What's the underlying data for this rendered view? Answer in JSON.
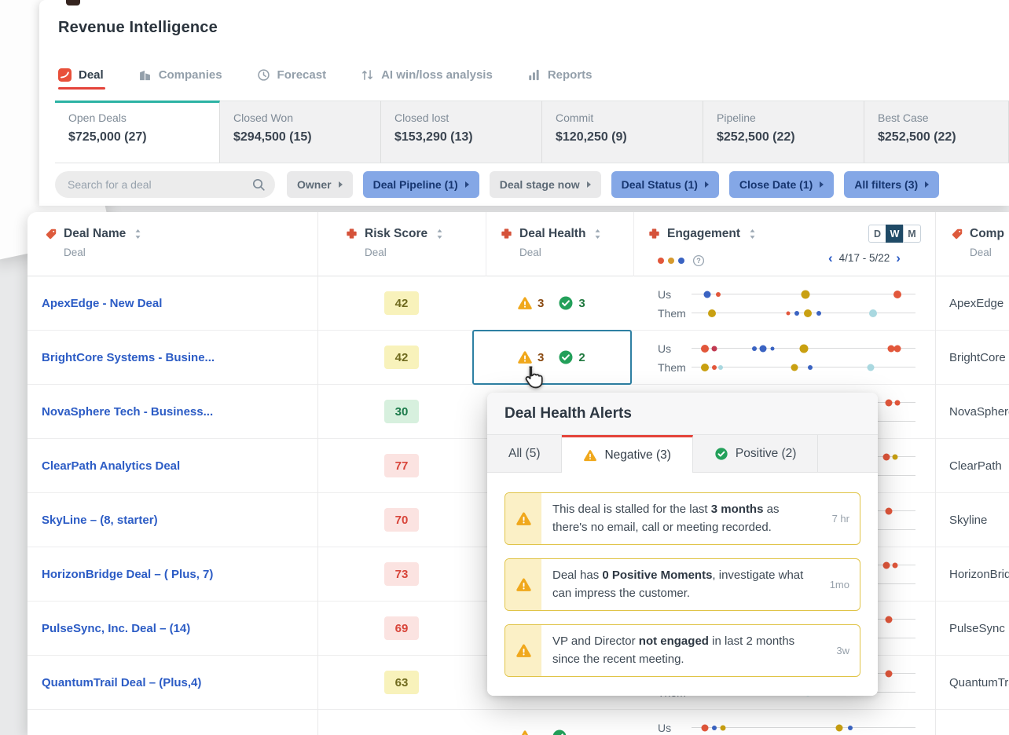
{
  "page": {
    "title": "Revenue Intelligence"
  },
  "nav": {
    "tabs": [
      {
        "label": "Deal",
        "icon": "deal-logo-icon",
        "active": true
      },
      {
        "label": "Companies",
        "icon": "buildings-icon",
        "active": false
      },
      {
        "label": "Forecast",
        "icon": "clock-icon",
        "active": false
      },
      {
        "label": "AI win/loss analysis",
        "icon": "winloss-icon",
        "active": false
      },
      {
        "label": "Reports",
        "icon": "bar-chart-icon",
        "active": false
      }
    ]
  },
  "summary_cards": [
    {
      "label": "Open Deals",
      "value": "$725,000 (27)",
      "active": true
    },
    {
      "label": "Closed Won",
      "value": "$294,500 (15)",
      "active": false
    },
    {
      "label": "Closed lost",
      "value": "$153,290 (13)",
      "active": false
    },
    {
      "label": "Commit",
      "value": "$120,250 (9)",
      "active": false
    },
    {
      "label": "Pipeline",
      "value": "$252,500 (22)",
      "active": false
    },
    {
      "label": "Best Case",
      "value": "$252,500 (22)",
      "active": false
    }
  ],
  "filter_bar": {
    "search": {
      "placeholder": "Search for a deal"
    },
    "chips": [
      {
        "label": "Owner",
        "active": false
      },
      {
        "label": "Deal Pipeline (1)",
        "active": true
      },
      {
        "label": "Deal stage now",
        "active": false
      },
      {
        "label": "Deal Status (1)",
        "active": true
      },
      {
        "label": "Close Date (1)",
        "active": true
      },
      {
        "label": "All filters (3)",
        "active": true
      }
    ]
  },
  "table": {
    "columns": {
      "deal_name": {
        "label": "Deal Name",
        "sublabel": "Deal"
      },
      "risk_score": {
        "label": "Risk Score",
        "sublabel": "Deal"
      },
      "deal_health": {
        "label": "Deal Health",
        "sublabel": "Deal"
      },
      "engagement": {
        "label": "Engagement",
        "series_labels": [
          "Us",
          "Them"
        ],
        "granularity_options": [
          "D",
          "W",
          "M"
        ],
        "granularity_selected": "W",
        "date_range": "4/17 - 5/22",
        "legend_colors": [
          "#e2573b",
          "#d69a2d",
          "#3a63c2"
        ]
      },
      "company": {
        "label": "Comp",
        "sublabel": "Deal"
      }
    },
    "dot_colors": {
      "red": "#e2573b",
      "maroon": "#c13a52",
      "yellow": "#c9a011",
      "blue": "#3a63c2",
      "cyan": "#a9d8e0"
    },
    "rows": [
      {
        "name": "ApexEdge - New Deal",
        "risk": "42",
        "risk_tone": "yellow",
        "health": {
          "negative": "3",
          "positive": "3"
        },
        "health_selected": false,
        "company": "ApexEdge",
        "us": [
          {
            "p": 7,
            "c": "blue",
            "s": 9
          },
          {
            "p": 12,
            "c": "red",
            "s": 6
          },
          {
            "p": 51,
            "c": "yellow",
            "s": 11
          },
          {
            "p": 92,
            "c": "red",
            "s": 10
          }
        ],
        "them": [
          {
            "p": 9,
            "c": "yellow",
            "s": 10
          },
          {
            "p": 43,
            "c": "red",
            "s": 5
          },
          {
            "p": 47,
            "c": "blue",
            "s": 6
          },
          {
            "p": 52,
            "c": "yellow",
            "s": 10
          },
          {
            "p": 57,
            "c": "blue",
            "s": 6
          },
          {
            "p": 81,
            "c": "cyan",
            "s": 10
          }
        ]
      },
      {
        "name": "BrightCore Systems - Busine...",
        "risk": "42",
        "risk_tone": "yellow",
        "health": {
          "negative": "3",
          "positive": "2"
        },
        "health_selected": true,
        "company": "BrightCore",
        "us": [
          {
            "p": 6,
            "c": "red",
            "s": 10
          },
          {
            "p": 10,
            "c": "maroon",
            "s": 7
          },
          {
            "p": 28,
            "c": "blue",
            "s": 6
          },
          {
            "p": 32,
            "c": "blue",
            "s": 9
          },
          {
            "p": 36,
            "c": "blue",
            "s": 5
          },
          {
            "p": 50,
            "c": "yellow",
            "s": 11
          },
          {
            "p": 89,
            "c": "red",
            "s": 9
          },
          {
            "p": 92,
            "c": "red",
            "s": 9
          }
        ],
        "them": [
          {
            "p": 6,
            "c": "yellow",
            "s": 10
          },
          {
            "p": 10,
            "c": "red",
            "s": 6
          },
          {
            "p": 13,
            "c": "cyan",
            "s": 6
          },
          {
            "p": 46,
            "c": "yellow",
            "s": 9
          },
          {
            "p": 53,
            "c": "blue",
            "s": 6
          },
          {
            "p": 80,
            "c": "cyan",
            "s": 9
          }
        ]
      },
      {
        "name": "NovaSphere Tech - Business...",
        "risk": "30",
        "risk_tone": "green",
        "health": null,
        "health_selected": false,
        "company": "NovaSphere",
        "us": [
          {
            "p": 88,
            "c": "red",
            "s": 9
          },
          {
            "p": 92,
            "c": "red",
            "s": 7
          }
        ],
        "them": []
      },
      {
        "name": "ClearPath Analytics Deal",
        "risk": "77",
        "risk_tone": "red",
        "health": null,
        "health_selected": false,
        "company": "ClearPath",
        "us": [
          {
            "p": 87,
            "c": "red",
            "s": 9
          },
          {
            "p": 91,
            "c": "yellow",
            "s": 7
          }
        ],
        "them": []
      },
      {
        "name": "SkyLine – (8, starter)",
        "risk": "70",
        "risk_tone": "red",
        "health": null,
        "health_selected": false,
        "company": "Skyline",
        "us": [
          {
            "p": 88,
            "c": "red",
            "s": 9
          }
        ],
        "them": []
      },
      {
        "name": "HorizonBridge Deal – ( Plus, 7)",
        "risk": "73",
        "risk_tone": "red",
        "health": null,
        "health_selected": false,
        "company": "HorizonBridge",
        "us": [
          {
            "p": 87,
            "c": "red",
            "s": 9
          },
          {
            "p": 91,
            "c": "red",
            "s": 7
          }
        ],
        "them": []
      },
      {
        "name": "PulseSync, Inc. Deal – (14)",
        "risk": "69",
        "risk_tone": "red",
        "health": null,
        "health_selected": false,
        "company": "PulseSync",
        "us": [
          {
            "p": 88,
            "c": "red",
            "s": 9
          }
        ],
        "them": []
      },
      {
        "name": "QuantumTrail Deal – (Plus,4)",
        "risk": "63",
        "risk_tone": "yellow",
        "health": null,
        "health_selected": false,
        "company": "QuantumTrail",
        "us": [
          {
            "p": 88,
            "c": "red",
            "s": 9
          }
        ],
        "them": [
          {
            "p": 52,
            "c": "cyan",
            "s": 9
          }
        ]
      },
      {
        "name": "",
        "risk": "",
        "risk_tone": "",
        "health": {
          "negative": "",
          "positive": ""
        },
        "health_selected": false,
        "company": "",
        "us": [
          {
            "p": 6,
            "c": "red",
            "s": 9
          },
          {
            "p": 10,
            "c": "blue",
            "s": 6
          },
          {
            "p": 14,
            "c": "yellow",
            "s": 7
          },
          {
            "p": 66,
            "c": "yellow",
            "s": 9
          },
          {
            "p": 71,
            "c": "blue",
            "s": 6
          }
        ],
        "them": []
      }
    ]
  },
  "popup": {
    "title": "Deal Health Alerts",
    "tabs": [
      {
        "label": "All (5)",
        "icon": null,
        "active": false
      },
      {
        "label": "Negative (3)",
        "icon": "warning-icon",
        "active": true
      },
      {
        "label": "Positive (2)",
        "icon": "check-icon",
        "active": false
      }
    ],
    "alerts": [
      {
        "segments": [
          {
            "text": "This deal is stalled for the last ",
            "bold": false
          },
          {
            "text": "3 months",
            "bold": true
          },
          {
            "text": " as there's no email, call or meeting recorded.",
            "bold": false
          }
        ],
        "age": "7 hr"
      },
      {
        "segments": [
          {
            "text": "Deal has ",
            "bold": false
          },
          {
            "text": "0 Positive Moments",
            "bold": true
          },
          {
            "text": ", investigate what can impress the customer.",
            "bold": false
          }
        ],
        "age": "1mo"
      },
      {
        "segments": [
          {
            "text": "VP and Director ",
            "bold": false
          },
          {
            "text": "not engaged",
            "bold": true
          },
          {
            "text": " in last 2 months since the recent meeting.",
            "bold": false
          }
        ],
        "age": "3w"
      }
    ]
  },
  "colors": {
    "accent_red": "#e4433a",
    "accent_te al": "#2cb3a4",
    "link_blue": "#2c5cc5",
    "chip_active_bg": "#84a7e6",
    "risk_yellow_bg": "#f8f2bb",
    "risk_green_bg": "#d7f0de",
    "risk_red_bg": "#fbe3e1",
    "warning_amber": "#f0a81c",
    "positive_green": "#23a05a",
    "alert_border": "#e0c448",
    "selected_cell_border": "#2e80a3"
  }
}
